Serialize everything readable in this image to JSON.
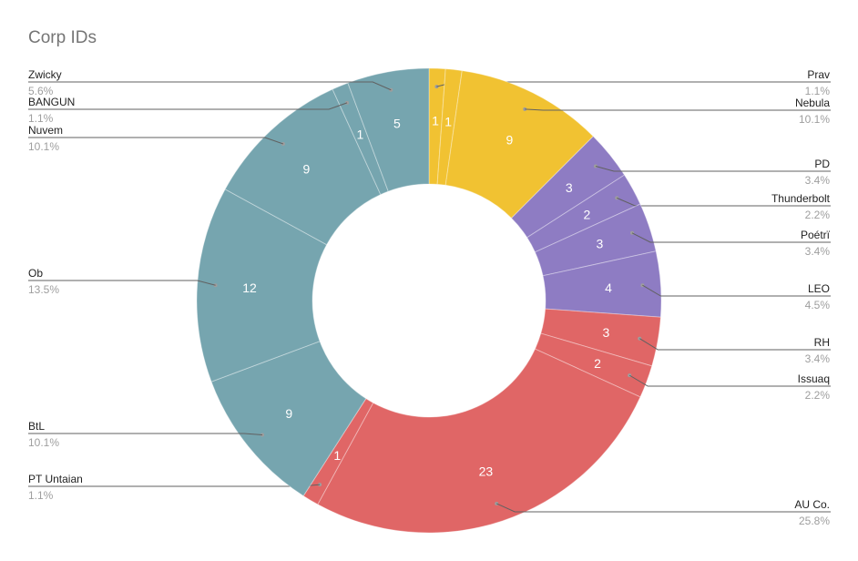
{
  "chart_data": {
    "type": "pie",
    "style": "donut",
    "title": "Corp IDs",
    "slices": [
      {
        "label": "Prav",
        "value": 1,
        "percent": "1.1%",
        "color": "#f1c232"
      },
      {
        "label": "Prav",
        "value": 1,
        "percent": "1.1%",
        "color": "#f1c232",
        "unlabeled": true
      },
      {
        "label": "Nebula",
        "value": 9,
        "percent": "10.1%",
        "color": "#f1c232"
      },
      {
        "label": "PD",
        "value": 3,
        "percent": "3.4%",
        "color": "#8e7cc3"
      },
      {
        "label": "Thunderbolt",
        "value": 2,
        "percent": "2.2%",
        "color": "#8e7cc3"
      },
      {
        "label": "Poétrï",
        "value": 3,
        "percent": "3.4%",
        "color": "#8e7cc3"
      },
      {
        "label": "LEO",
        "value": 4,
        "percent": "4.5%",
        "color": "#8e7cc3"
      },
      {
        "label": "RH",
        "value": 3,
        "percent": "3.4%",
        "color": "#e06666"
      },
      {
        "label": "Issuaq",
        "value": 2,
        "percent": "2.2%",
        "color": "#e06666"
      },
      {
        "label": "AU Co.",
        "value": 23,
        "percent": "25.8%",
        "color": "#e06666"
      },
      {
        "label": "PT Untaian",
        "value": 1,
        "percent": "1.1%",
        "color": "#e06666"
      },
      {
        "label": "BtL",
        "value": 9,
        "percent": "10.1%",
        "color": "#76a5af"
      },
      {
        "label": "Ob",
        "value": 12,
        "percent": "13.5%",
        "color": "#76a5af"
      },
      {
        "label": "Nuvem",
        "value": 9,
        "percent": "10.1%",
        "color": "#76a5af"
      },
      {
        "label": "BANGUN",
        "value": 1,
        "percent": "1.1%",
        "color": "#76a5af"
      },
      {
        "label": "Zwicky",
        "value": 5,
        "percent": "5.6%",
        "color": "#76a5af"
      }
    ],
    "legend": "outside-labels"
  }
}
